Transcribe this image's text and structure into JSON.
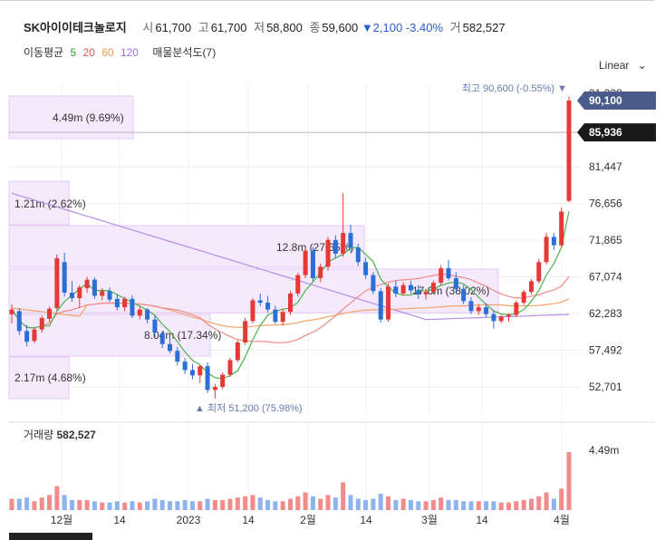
{
  "header": {
    "name": "SK아이이테크놀로지",
    "open_label": "시",
    "open_value": "61,700",
    "high_label": "고",
    "high_value": "61,700",
    "low_label": "저",
    "low_value": "58,800",
    "close_label": "종",
    "close_value": "59,600",
    "change_value": "▼2,100 -3.40%",
    "volume_label": "거",
    "volume_value": "582,527"
  },
  "indicators": {
    "ma_label": "이동평균",
    "ma_periods": [
      {
        "text": "5",
        "color": "#2ca02c"
      },
      {
        "text": "20",
        "color": "#e8564f"
      },
      {
        "text": "60",
        "color": "#f09a4a"
      },
      {
        "text": "120",
        "color": "#9b6fe0"
      }
    ],
    "analysis_label": "매물분석도(7)"
  },
  "scale_toggle": "Linear",
  "chart_data": {
    "type": "candlestick",
    "price_axis": {
      "ticks": [
        "90,100",
        "85,936",
        "81,447",
        "76,656",
        "71,865",
        "67,074",
        "62,283",
        "57,492",
        "52,701"
      ],
      "current_price_tag": "90,100",
      "crosshair_price_tag": "85,936",
      "partial_top_tick": "91,238"
    },
    "x_labels": [
      "12월",
      "14",
      "2023",
      "14",
      "2월",
      "14",
      "3월",
      "14",
      "4월"
    ],
    "annotations": {
      "high": "최고 90,600 (-0.55%) ▼",
      "low": "▲ 최저 51,200 (75.98%)"
    },
    "volume_profile": [
      {
        "label": "4.49m (9.69%)"
      },
      {
        "label": "1.21m (2.62%)"
      },
      {
        "label": "12.8m (27.65%)"
      },
      {
        "label": "17.6m (38.02%)"
      },
      {
        "label": "8.04m (17.34%)"
      },
      {
        "label": "2.17m (4.68%)"
      }
    ],
    "volume_panel": {
      "label": "거래량",
      "value": "582,527",
      "axis_tick": "4.49m"
    },
    "candles": [
      [
        62200,
        63500,
        61000,
        62800
      ],
      [
        62600,
        63000,
        59500,
        60000
      ],
      [
        60000,
        60800,
        58000,
        58600
      ],
      [
        58700,
        60500,
        58400,
        60200
      ],
      [
        60200,
        62000,
        59800,
        61700
      ],
      [
        61600,
        63200,
        61200,
        62900
      ],
      [
        63000,
        70000,
        62700,
        69500
      ],
      [
        69000,
        70200,
        64500,
        65000
      ],
      [
        65000,
        66500,
        63800,
        64300
      ],
      [
        64300,
        66000,
        63000,
        65700
      ],
      [
        65600,
        67100,
        65000,
        66700
      ],
      [
        66700,
        67000,
        64200,
        64600
      ],
      [
        64600,
        65600,
        64000,
        65200
      ],
      [
        65200,
        65700,
        63800,
        64100
      ],
      [
        64200,
        64800,
        62700,
        63100
      ],
      [
        63100,
        64500,
        62600,
        64200
      ],
      [
        64200,
        64700,
        61700,
        62000
      ],
      [
        62000,
        63200,
        61500,
        62800
      ],
      [
        62800,
        63000,
        61000,
        61500
      ],
      [
        61500,
        62100,
        59200,
        59800
      ],
      [
        59700,
        60000,
        57800,
        58300
      ],
      [
        58300,
        59400,
        57100,
        57400
      ],
      [
        57400,
        57900,
        55500,
        56000
      ],
      [
        56000,
        56500,
        54400,
        54900
      ],
      [
        54900,
        55700,
        53700,
        54200
      ],
      [
        54200,
        55600,
        53200,
        55400
      ],
      [
        55400,
        55900,
        51900,
        52300
      ],
      [
        52300,
        53100,
        51200,
        52700
      ],
      [
        52700,
        54600,
        52400,
        54300
      ],
      [
        54300,
        56500,
        54000,
        56200
      ],
      [
        56200,
        58800,
        55900,
        58500
      ],
      [
        58500,
        61700,
        58200,
        61300
      ],
      [
        61300,
        64300,
        61000,
        64000
      ],
      [
        64000,
        64900,
        63200,
        63700
      ],
      [
        63700,
        64600,
        62400,
        62800
      ],
      [
        62800,
        63300,
        60900,
        61200
      ],
      [
        61200,
        62900,
        60700,
        62500
      ],
      [
        62500,
        65200,
        62100,
        64900
      ],
      [
        64900,
        67600,
        64500,
        67300
      ],
      [
        67300,
        70800,
        66900,
        70500
      ],
      [
        70500,
        71000,
        66500,
        66900
      ],
      [
        66900,
        68800,
        66400,
        68400
      ],
      [
        68400,
        72300,
        67900,
        71900
      ],
      [
        71900,
        72500,
        69500,
        70100
      ],
      [
        70100,
        78000,
        69700,
        72800
      ],
      [
        72800,
        73900,
        70400,
        70900
      ],
      [
        70900,
        71400,
        68500,
        69000
      ],
      [
        69000,
        69600,
        66800,
        67300
      ],
      [
        67300,
        67700,
        64800,
        65200
      ],
      [
        65200,
        65600,
        61100,
        61500
      ],
      [
        61500,
        66200,
        61200,
        65800
      ],
      [
        65800,
        66600,
        64400,
        64900
      ],
      [
        64900,
        66400,
        64600,
        66000
      ],
      [
        66000,
        66600,
        64900,
        65300
      ],
      [
        65300,
        66000,
        64200,
        64800
      ],
      [
        64800,
        65500,
        64100,
        65100
      ],
      [
        65100,
        66600,
        64800,
        66300
      ],
      [
        66300,
        68600,
        66000,
        68200
      ],
      [
        68200,
        69300,
        66600,
        66900
      ],
      [
        66900,
        67700,
        65100,
        65500
      ],
      [
        65500,
        66000,
        63500,
        63900
      ],
      [
        63900,
        64400,
        62200,
        62600
      ],
      [
        62600,
        63500,
        62100,
        63100
      ],
      [
        63100,
        63600,
        61800,
        62200
      ],
      [
        62200,
        62700,
        60300,
        61300
      ],
      [
        61300,
        62100,
        61000,
        61900
      ],
      [
        61900,
        62300,
        61200,
        62100
      ],
      [
        62100,
        64000,
        61800,
        63700
      ],
      [
        63700,
        65400,
        63400,
        65100
      ],
      [
        65100,
        66800,
        64800,
        66500
      ],
      [
        66500,
        69400,
        66200,
        69000
      ],
      [
        69000,
        72800,
        68700,
        72300
      ],
      [
        72300,
        72800,
        70600,
        71200
      ],
      [
        71200,
        76100,
        70900,
        75600
      ],
      [
        77000,
        90600,
        76800,
        90100
      ]
    ],
    "volumes": [
      9,
      9,
      10,
      7,
      10,
      12,
      19,
      12,
      8,
      8,
      8,
      7,
      6,
      6,
      7,
      6,
      7,
      6,
      7,
      9,
      8,
      7,
      7,
      8,
      7,
      7,
      9,
      8,
      8,
      9,
      10,
      11,
      12,
      10,
      8,
      7,
      7,
      9,
      11,
      14,
      11,
      9,
      12,
      10,
      22,
      12,
      9,
      8,
      9,
      13,
      11,
      8,
      9,
      8,
      7,
      7,
      8,
      10,
      8,
      8,
      7,
      7,
      7,
      7,
      7,
      6,
      6,
      7,
      8,
      9,
      11,
      14,
      9,
      17,
      46
    ]
  }
}
